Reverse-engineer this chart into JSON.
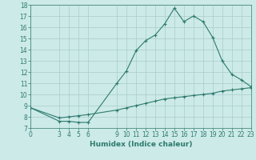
{
  "xlabel": "Humidex (Indice chaleur)",
  "ylabel": "",
  "background_color": "#cceae8",
  "grid_color": "#aacccc",
  "line_color": "#2d7a6e",
  "xlim": [
    0,
    23
  ],
  "ylim": [
    7,
    18
  ],
  "xtick_positions": [
    0,
    3,
    4,
    5,
    6,
    9,
    10,
    11,
    12,
    13,
    14,
    15,
    16,
    17,
    18,
    19,
    20,
    21,
    22,
    23
  ],
  "xtick_labels": [
    "0",
    "3",
    "4",
    "5",
    "6",
    "9",
    "10",
    "11",
    "12",
    "13",
    "14",
    "15",
    "16",
    "17",
    "18",
    "19",
    "20",
    "21",
    "22",
    "23"
  ],
  "ytick_positions": [
    7,
    8,
    9,
    10,
    11,
    12,
    13,
    14,
    15,
    16,
    17,
    18
  ],
  "ytick_labels": [
    "7",
    "8",
    "9",
    "10",
    "11",
    "12",
    "13",
    "14",
    "15",
    "16",
    "17",
    "18"
  ],
  "grid_xticks": [
    0,
    1,
    2,
    3,
    4,
    5,
    6,
    7,
    8,
    9,
    10,
    11,
    12,
    13,
    14,
    15,
    16,
    17,
    18,
    19,
    20,
    21,
    22,
    23
  ],
  "grid_yticks": [
    7,
    8,
    9,
    10,
    11,
    12,
    13,
    14,
    15,
    16,
    17,
    18
  ],
  "line1_x": [
    0,
    3,
    4,
    5,
    6,
    9,
    10,
    11,
    12,
    13,
    14,
    15,
    16,
    17,
    18,
    19,
    20,
    21,
    22,
    23
  ],
  "line1_y": [
    8.8,
    7.6,
    7.6,
    7.5,
    7.5,
    11.0,
    12.1,
    13.9,
    14.8,
    15.3,
    16.3,
    17.7,
    16.5,
    17.0,
    16.5,
    15.1,
    13.0,
    11.8,
    11.3,
    10.7
  ],
  "line2_x": [
    0,
    3,
    4,
    5,
    6,
    9,
    10,
    11,
    12,
    13,
    14,
    15,
    16,
    17,
    18,
    19,
    20,
    21,
    22,
    23
  ],
  "line2_y": [
    8.8,
    7.9,
    8.0,
    8.1,
    8.2,
    8.6,
    8.8,
    9.0,
    9.2,
    9.4,
    9.6,
    9.7,
    9.8,
    9.9,
    10.0,
    10.1,
    10.3,
    10.4,
    10.5,
    10.6
  ],
  "linewidth": 0.8,
  "markersize": 3,
  "tick_fontsize": 5.5,
  "xlabel_fontsize": 6.5
}
